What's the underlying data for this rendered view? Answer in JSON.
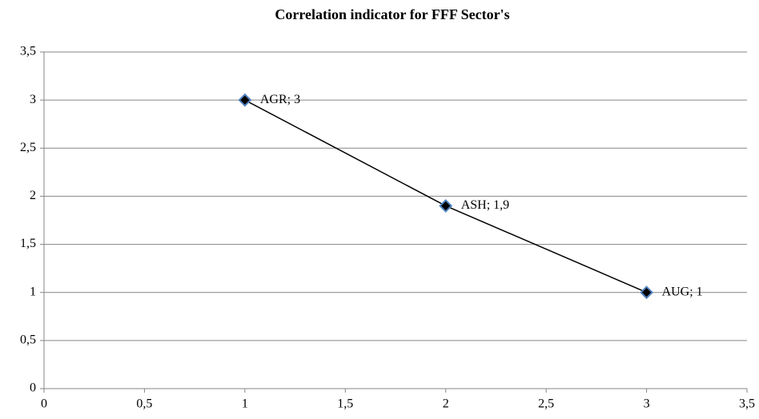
{
  "chart_data": {
    "type": "line",
    "title": "Correlation indicator for FFF Sector's",
    "x": [
      1,
      2,
      3
    ],
    "series": [
      {
        "color": "#000000",
        "marker_edge_color": "#4f81bd",
        "values": [
          3,
          1.9,
          1
        ],
        "value_labels": [
          "AGR; 3",
          "ASH; 1,9",
          "AUG; 1"
        ]
      }
    ],
    "xlim": [
      0,
      3.5
    ],
    "xticks": [
      0,
      {
        "value": 0.5,
        "label": "0,5"
      },
      1,
      {
        "value": 1.5,
        "label": "1,5"
      },
      2,
      {
        "value": 2.5,
        "label": "2,5"
      },
      3,
      {
        "value": 3.5,
        "label": "3,5"
      }
    ],
    "ylim": [
      0,
      3.5
    ],
    "yticks": [
      0,
      {
        "value": 0.5,
        "label": "0,5"
      },
      1,
      {
        "value": 1.5,
        "label": "1,5"
      },
      2,
      {
        "value": 2.5,
        "label": "2,5"
      },
      3,
      {
        "value": 3.5,
        "label": "3,5"
      }
    ],
    "grid": true
  }
}
